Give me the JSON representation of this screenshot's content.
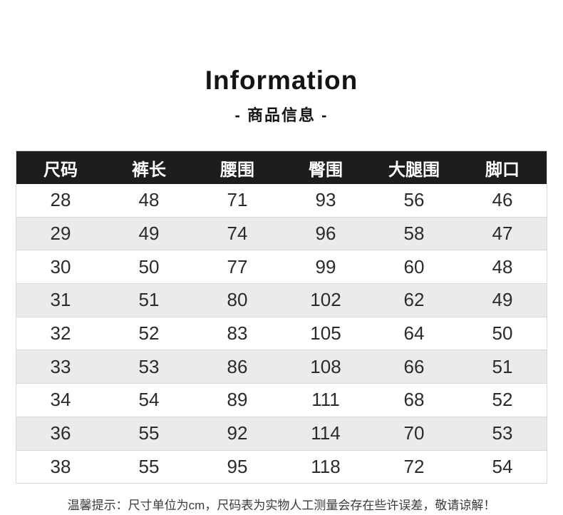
{
  "header": {
    "title": "Information",
    "subtitle": "- 商品信息 -"
  },
  "table": {
    "columns": [
      "尺码",
      "裤长",
      "腰围",
      "臀围",
      "大腿围",
      "脚口"
    ],
    "rows": [
      [
        "28",
        "48",
        "71",
        "93",
        "56",
        "46"
      ],
      [
        "29",
        "49",
        "74",
        "96",
        "58",
        "47"
      ],
      [
        "30",
        "50",
        "77",
        "99",
        "60",
        "48"
      ],
      [
        "31",
        "51",
        "80",
        "102",
        "62",
        "49"
      ],
      [
        "32",
        "52",
        "83",
        "105",
        "64",
        "50"
      ],
      [
        "33",
        "53",
        "86",
        "108",
        "66",
        "51"
      ],
      [
        "34",
        "54",
        "89",
        "111",
        "68",
        "52"
      ],
      [
        "36",
        "55",
        "92",
        "114",
        "70",
        "53"
      ],
      [
        "38",
        "55",
        "95",
        "118",
        "72",
        "54"
      ]
    ]
  },
  "footer": {
    "note": "温馨提示：尺寸单位为cm，尺码表为实物人工测量会存在些许误差，敬请谅解！"
  },
  "colors": {
    "header_bg": "#1d1d1d",
    "header_text": "#ffffff",
    "row_alt_bg": "#ebebeb",
    "border": "#d9d9d9",
    "text": "#2b2b2b"
  }
}
